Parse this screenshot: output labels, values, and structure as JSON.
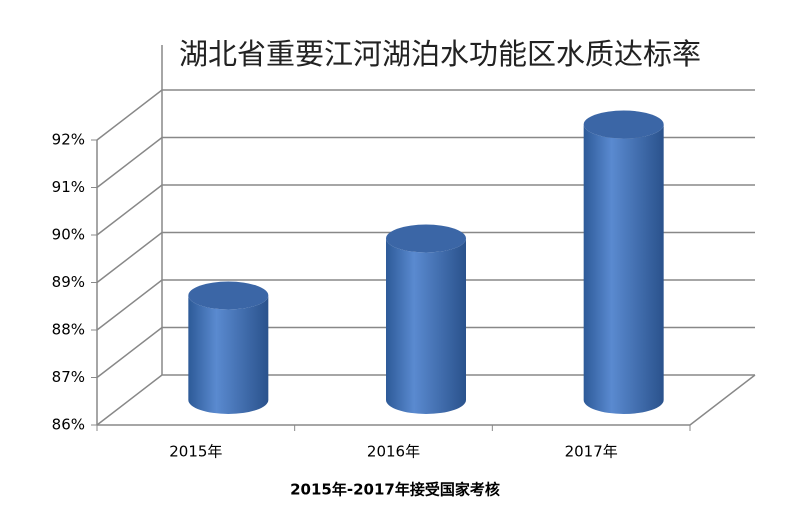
{
  "chart_data": {
    "type": "bar3d",
    "title": "湖北省重要江河湖泊水功能区水质达标率",
    "x_label": "2015年-2017年接受国家考核",
    "categories": [
      "2015年",
      "2016年",
      "2017年"
    ],
    "values": [
      88.2,
      89.4,
      91.8
    ],
    "color": "#4a7cc0",
    "ylim": [
      86,
      92
    ],
    "yticks": [
      {
        "value": 86,
        "label": "86%"
      },
      {
        "value": 87,
        "label": "87%"
      },
      {
        "value": 88,
        "label": "88%"
      },
      {
        "value": 89,
        "label": "89%"
      },
      {
        "value": 90,
        "label": "90%"
      },
      {
        "value": 91,
        "label": "91%"
      },
      {
        "value": 92,
        "label": "92%"
      }
    ],
    "grid": true
  }
}
